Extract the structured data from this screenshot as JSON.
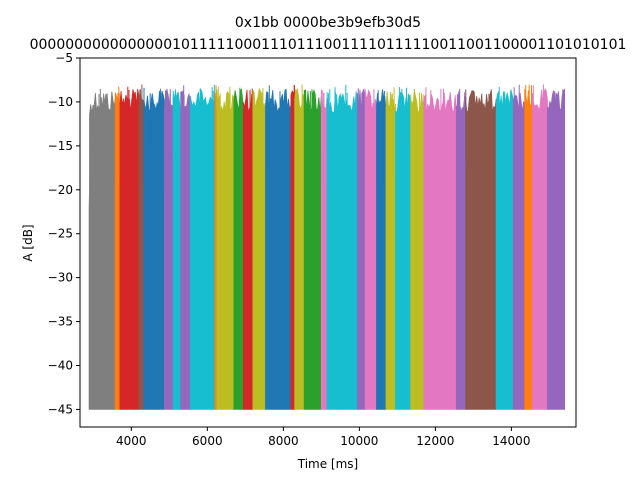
{
  "chart_data": {
    "type": "line",
    "title": "0x1bb 0000be3b9efb30d5",
    "subtitle": "0000000000000000101111100011101110011110111110011001100001101010101",
    "xlabel": "Time [ms]",
    "ylabel": "A [dB]",
    "xlim": [
      2650,
      15700
    ],
    "ylim": [
      -47,
      -5
    ],
    "xticks": [
      4000,
      6000,
      8000,
      10000,
      12000,
      14000
    ],
    "xtick_labels": [
      "4000",
      "6000",
      "8000",
      "10000",
      "12000",
      "14000"
    ],
    "yticks": [
      -45,
      -40,
      -35,
      -30,
      -25,
      -20,
      -15,
      -10,
      -5
    ],
    "ytick_labels": [
      "−45",
      "−40",
      "−35",
      "−30",
      "−25",
      "−20",
      "−15",
      "−10",
      "−5"
    ],
    "grid": false,
    "floor": -45,
    "colors": {
      "gray": "#7f7f7f",
      "red": "#d62728",
      "blue": "#1f77b4",
      "purple": "#9467bd",
      "cyan": "#17becf",
      "olive": "#bcbd22",
      "orange": "#ff7f0e",
      "green": "#2ca02c",
      "pink": "#e377c2",
      "brown": "#8c564b"
    },
    "bands": [
      {
        "x0": 2900,
        "x1": 3580,
        "color": "gray"
      },
      {
        "x0": 3580,
        "x1": 3700,
        "color": "orange"
      },
      {
        "x0": 3700,
        "x1": 4200,
        "color": "red"
      },
      {
        "x0": 4200,
        "x1": 4330,
        "color": "brown"
      },
      {
        "x0": 4330,
        "x1": 4870,
        "color": "blue"
      },
      {
        "x0": 4870,
        "x1": 5100,
        "color": "purple"
      },
      {
        "x0": 5100,
        "x1": 5300,
        "color": "cyan"
      },
      {
        "x0": 5300,
        "x1": 5550,
        "color": "purple"
      },
      {
        "x0": 5550,
        "x1": 6200,
        "color": "cyan"
      },
      {
        "x0": 6200,
        "x1": 6250,
        "color": "orange"
      },
      {
        "x0": 6250,
        "x1": 6700,
        "color": "olive"
      },
      {
        "x0": 6700,
        "x1": 6950,
        "color": "green"
      },
      {
        "x0": 6950,
        "x1": 7200,
        "color": "red"
      },
      {
        "x0": 7200,
        "x1": 7530,
        "color": "olive"
      },
      {
        "x0": 7530,
        "x1": 8200,
        "color": "blue"
      },
      {
        "x0": 8200,
        "x1": 8300,
        "color": "red"
      },
      {
        "x0": 8300,
        "x1": 8550,
        "color": "olive"
      },
      {
        "x0": 8550,
        "x1": 9000,
        "color": "green"
      },
      {
        "x0": 9000,
        "x1": 9150,
        "color": "pink"
      },
      {
        "x0": 9150,
        "x1": 9400,
        "color": "cyan"
      },
      {
        "x0": 9400,
        "x1": 9950,
        "color": "cyan"
      },
      {
        "x0": 9950,
        "x1": 10150,
        "color": "purple"
      },
      {
        "x0": 10150,
        "x1": 10450,
        "color": "pink"
      },
      {
        "x0": 10450,
        "x1": 10700,
        "color": "blue"
      },
      {
        "x0": 10700,
        "x1": 10950,
        "color": "olive"
      },
      {
        "x0": 10950,
        "x1": 11350,
        "color": "cyan"
      },
      {
        "x0": 11350,
        "x1": 11700,
        "color": "olive"
      },
      {
        "x0": 11700,
        "x1": 12550,
        "color": "pink"
      },
      {
        "x0": 12550,
        "x1": 12800,
        "color": "purple"
      },
      {
        "x0": 12800,
        "x1": 13600,
        "color": "brown"
      },
      {
        "x0": 13600,
        "x1": 14050,
        "color": "cyan"
      },
      {
        "x0": 14050,
        "x1": 14350,
        "color": "purple"
      },
      {
        "x0": 14350,
        "x1": 14550,
        "color": "orange"
      },
      {
        "x0": 14550,
        "x1": 14950,
        "color": "pink"
      },
      {
        "x0": 14950,
        "x1": 15400,
        "color": "purple"
      }
    ]
  }
}
